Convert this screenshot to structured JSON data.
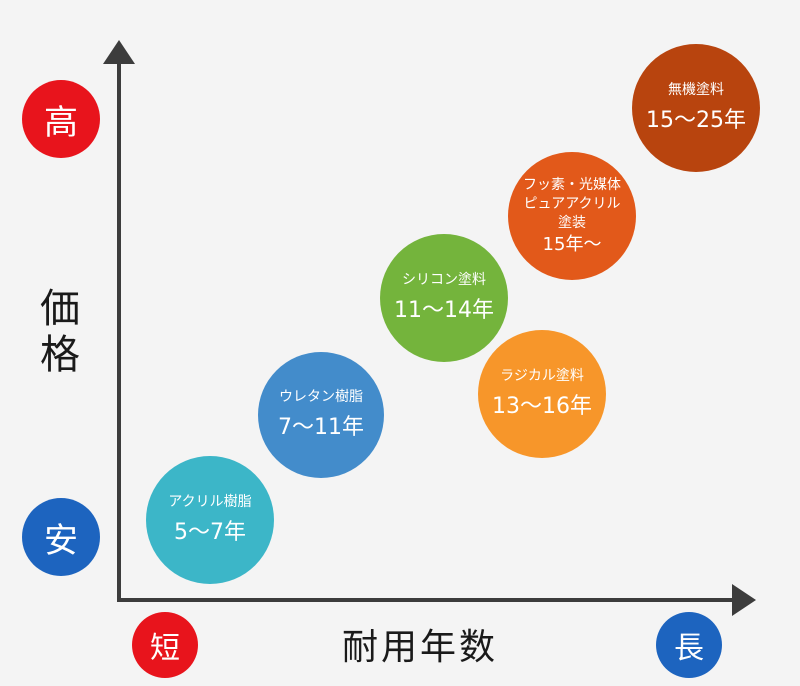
{
  "y_axis": {
    "label_chars": [
      "価",
      "格"
    ],
    "high_label": "高",
    "low_label": "安"
  },
  "x_axis": {
    "label": "耐用年数",
    "short_label": "短",
    "long_label": "長"
  },
  "colors": {
    "badge_red": "#e8141c",
    "badge_blue": "#1d64bf",
    "axis": "#3c3c3c"
  },
  "paints": [
    {
      "name": "アクリル樹脂",
      "years": "5〜7年",
      "color": "#3cb6c8"
    },
    {
      "name": "ウレタン樹脂",
      "years": "7〜11年",
      "color": "#438ccb"
    },
    {
      "name": "シリコン塗料",
      "years": "11〜14年",
      "color": "#74b43c"
    },
    {
      "name": "ラジカル塗料",
      "years": "13〜16年",
      "color": "#f7962a"
    },
    {
      "name": "フッ素・光媒体\nピュアアクリル\n塗装",
      "years": "15年〜",
      "color": "#e2591a"
    },
    {
      "name": "無機塗料",
      "years": "15〜25年",
      "color": "#b8440e"
    }
  ]
}
